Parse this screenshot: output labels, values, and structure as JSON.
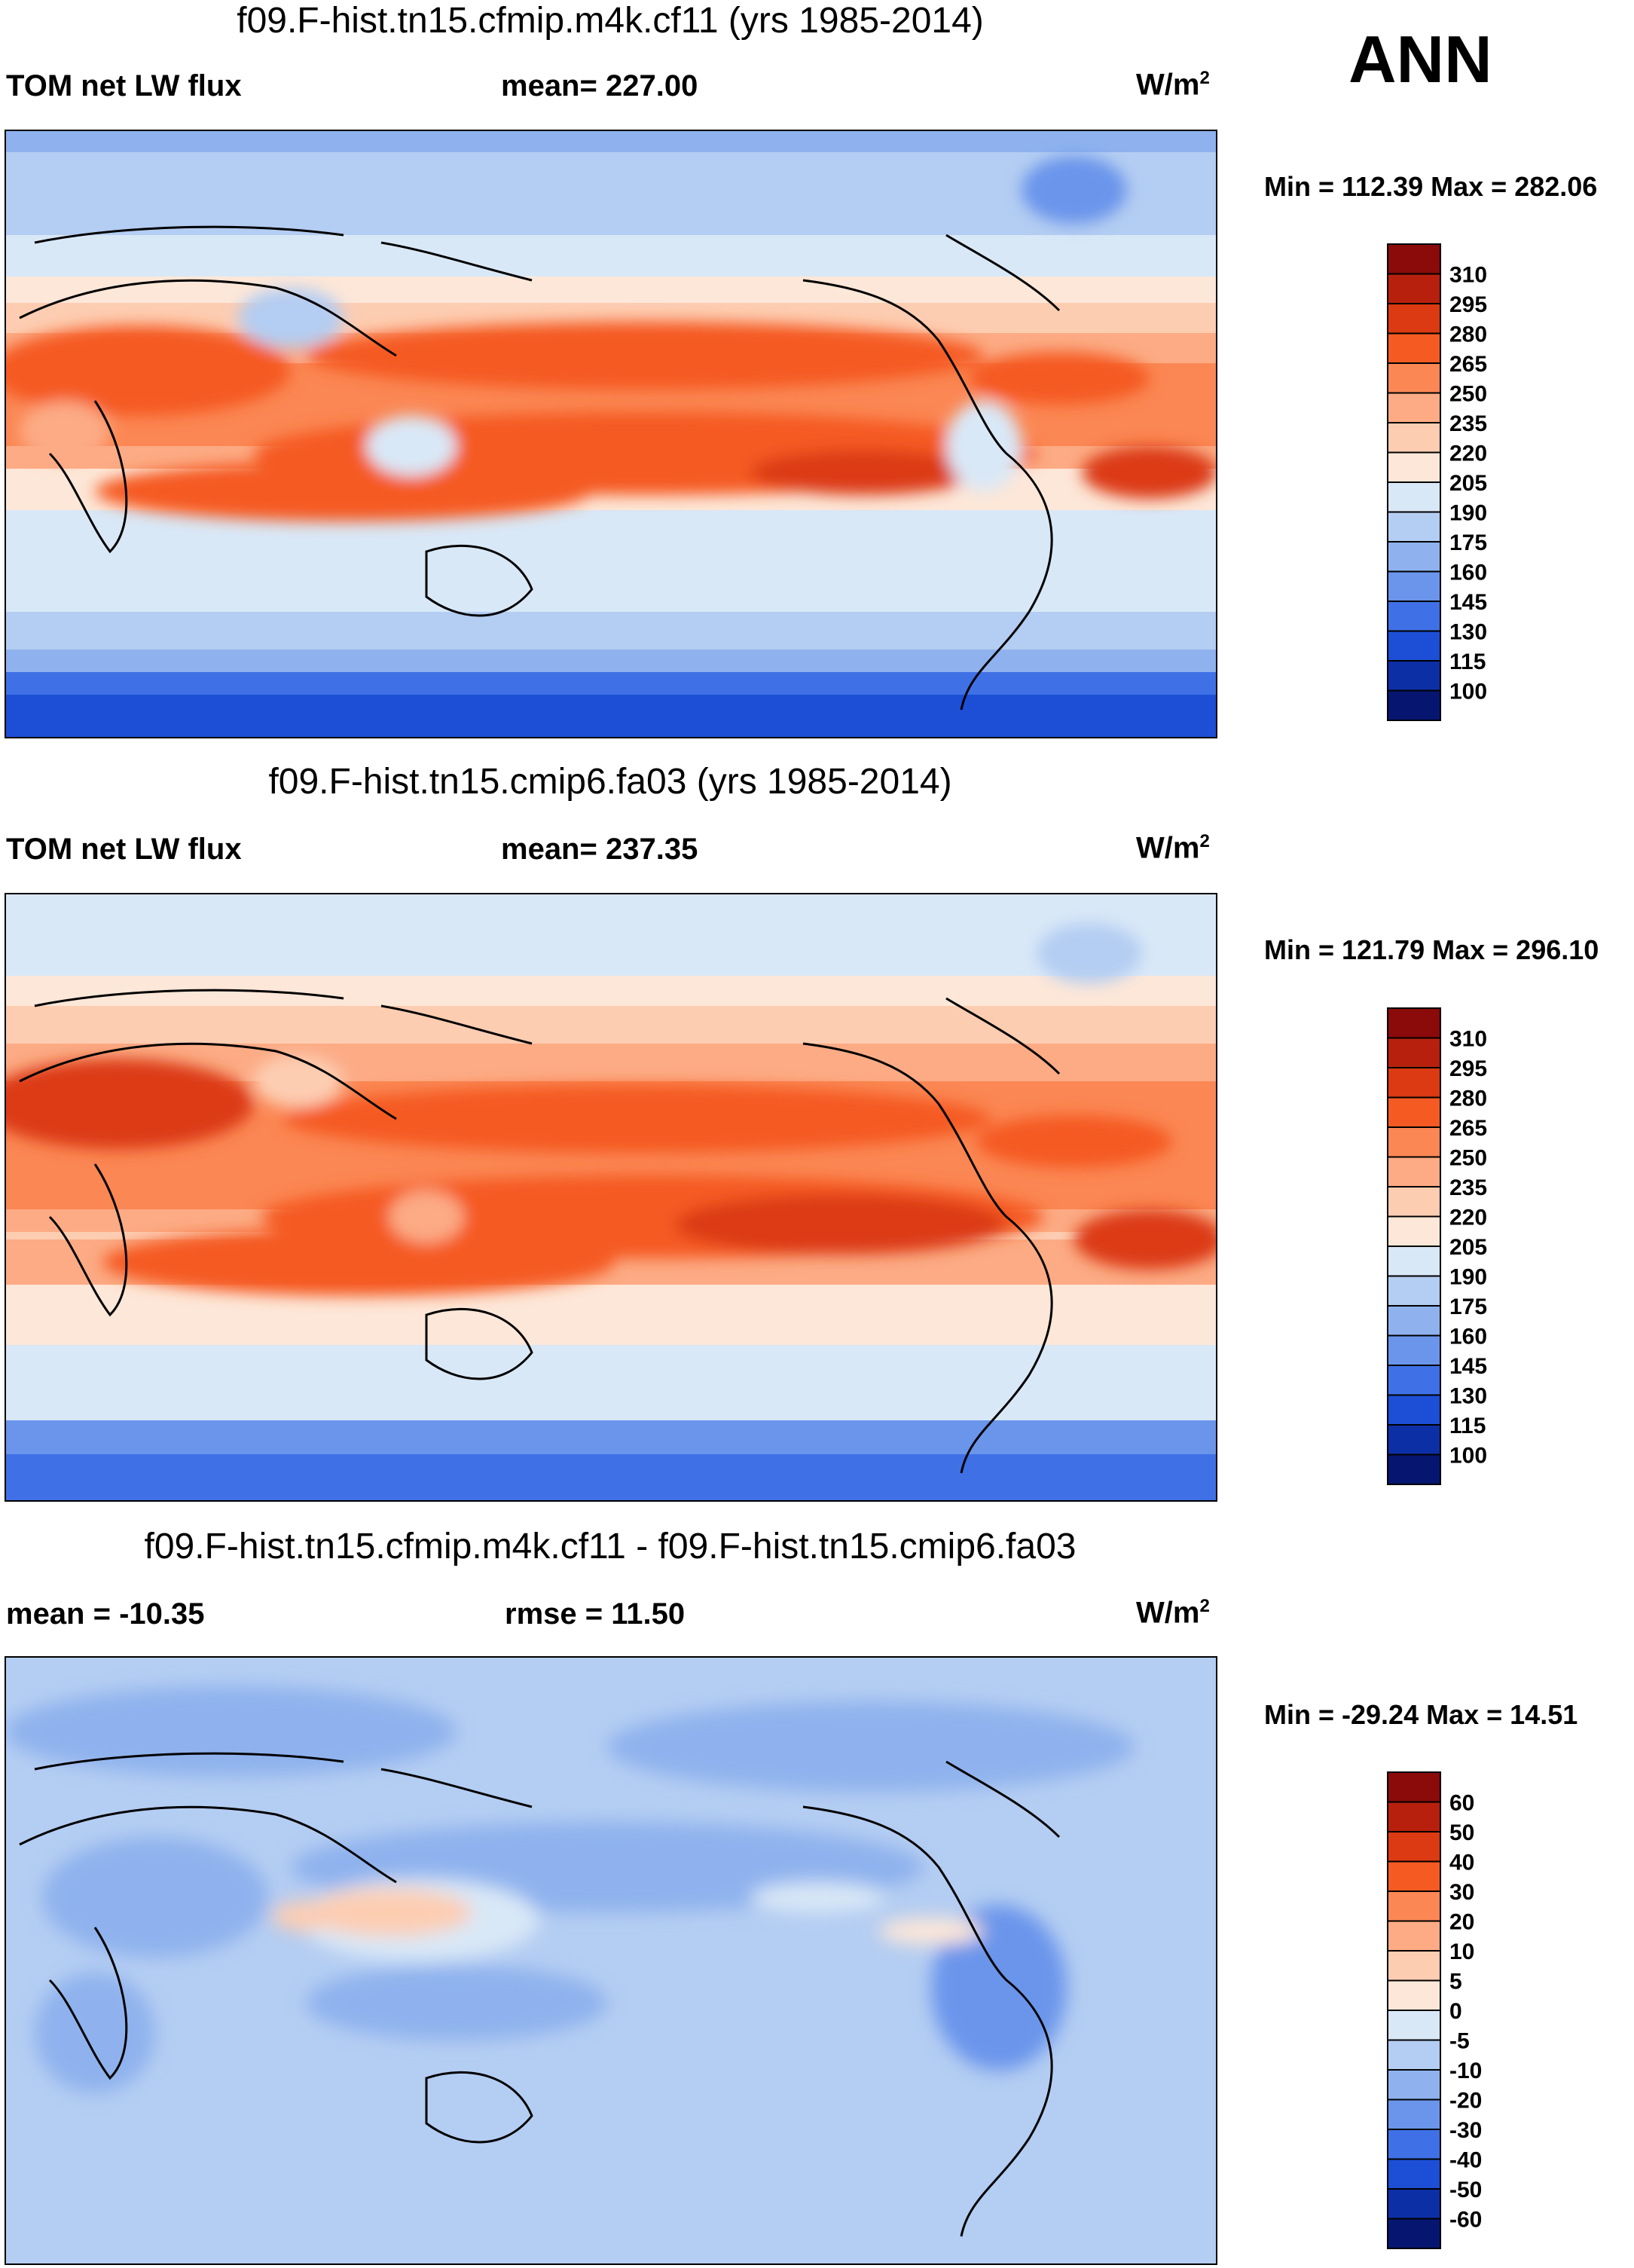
{
  "season": "ANN",
  "chart_data": [
    {
      "type": "heatmap",
      "id": "p1",
      "title": "f09.F-hist.tn15.cfmip.m4k.cf11 (yrs 1985-2014)",
      "left_label": "TOM net LW flux",
      "center_label": "mean= 227.00",
      "units": "W/m",
      "units_exp": "2",
      "min_max": "Min = 112.39 Max = 282.06",
      "mean": 227.0,
      "min": 112.39,
      "max": 282.06,
      "colorbar_levels": [
        "310",
        "295",
        "280",
        "265",
        "250",
        "235",
        "220",
        "205",
        "190",
        "175",
        "160",
        "145",
        "130",
        "115",
        "100"
      ],
      "colorbar_colors": [
        "#8b0a0a",
        "#b8200e",
        "#dc3a12",
        "#f55a22",
        "#fb8754",
        "#fcab85",
        "#fdcdb2",
        "#fde7d8",
        "#d9e8f7",
        "#b4cdf2",
        "#8fb2ee",
        "#6a95eb",
        "#3f70e6",
        "#1c4fd6",
        "#0d2fa6",
        "#061670"
      ],
      "field": "net outgoing longwave radiation, annual mean"
    },
    {
      "type": "heatmap",
      "id": "p2",
      "title": "f09.F-hist.tn15.cmip6.fa03 (yrs 1985-2014)",
      "left_label": "TOM net LW flux",
      "center_label": "mean= 237.35",
      "units": "W/m",
      "units_exp": "2",
      "min_max": "Min = 121.79 Max = 296.10",
      "mean": 237.35,
      "min": 121.79,
      "max": 296.1,
      "colorbar_levels": [
        "310",
        "295",
        "280",
        "265",
        "250",
        "235",
        "220",
        "205",
        "190",
        "175",
        "160",
        "145",
        "130",
        "115",
        "100"
      ],
      "colorbar_colors": [
        "#8b0a0a",
        "#b8200e",
        "#dc3a12",
        "#f55a22",
        "#fb8754",
        "#fcab85",
        "#fdcdb2",
        "#fde7d8",
        "#d9e8f7",
        "#b4cdf2",
        "#8fb2ee",
        "#6a95eb",
        "#3f70e6",
        "#1c4fd6",
        "#0d2fa6",
        "#061670"
      ],
      "field": "net outgoing longwave radiation, annual mean"
    },
    {
      "type": "heatmap",
      "id": "p3",
      "title": "f09.F-hist.tn15.cfmip.m4k.cf11 - f09.F-hist.tn15.cmip6.fa03",
      "left_label": "mean = -10.35",
      "center_label": "rmse =  11.50",
      "units": "W/m",
      "units_exp": "2",
      "min_max": "Min = -29.24 Max =  14.51",
      "mean": -10.35,
      "rmse": 11.5,
      "min": -29.24,
      "max": 14.51,
      "colorbar_levels": [
        "60",
        "50",
        "40",
        "30",
        "20",
        "10",
        "5",
        "0",
        "-5",
        "-10",
        "-20",
        "-30",
        "-40",
        "-50",
        "-60"
      ],
      "colorbar_colors": [
        "#8b0a0a",
        "#b8200e",
        "#dc3a12",
        "#f55a22",
        "#fb8754",
        "#fcab85",
        "#fdcdb2",
        "#fde7d8",
        "#d9e8f7",
        "#b4cdf2",
        "#8fb2ee",
        "#6a95eb",
        "#3f70e6",
        "#1c4fd6",
        "#0d2fa6",
        "#061670"
      ],
      "field": "difference (model 1 - model 2)"
    }
  ]
}
